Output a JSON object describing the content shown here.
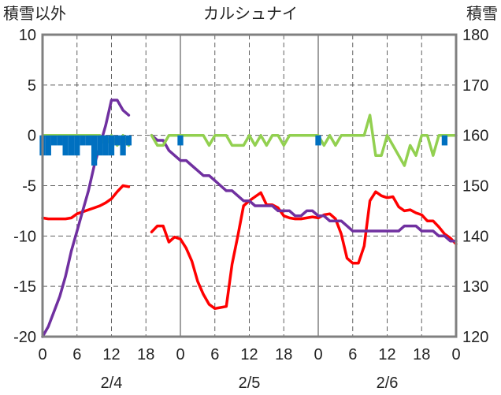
{
  "chart_data": {
    "type": "line",
    "title": "カルシュナイ",
    "left_axis_label": "積雪以外",
    "right_axis_label": "積雪",
    "left_ylim": [
      -20,
      10
    ],
    "right_ylim": [
      120,
      180
    ],
    "left_ticks": [
      "10",
      "5",
      "0",
      "-5",
      "-10",
      "-15",
      "-20"
    ],
    "right_ticks": [
      "180",
      "170",
      "160",
      "150",
      "140",
      "130",
      "120"
    ],
    "x_tick_labels": [
      "0",
      "6",
      "12",
      "18",
      "0",
      "6",
      "12",
      "18",
      "0",
      "6",
      "12",
      "18",
      "0"
    ],
    "x_hours_range": [
      0,
      72
    ],
    "date_labels": [
      {
        "label": "2/4",
        "hour": 12
      },
      {
        "label": "2/5",
        "hour": 36
      },
      {
        "label": "2/6",
        "hour": 60
      }
    ],
    "grid": true,
    "colors": {
      "temperature": "#ff0000",
      "snow_depth": "#7030a0",
      "snow_change": "#92d050",
      "precipitation": "#0070c0",
      "axes": "#808080",
      "grid": "#606060"
    },
    "series": [
      {
        "axis": "left",
        "color": "#ff0000",
        "style": "line",
        "points": [
          [
            0,
            -8.2
          ],
          [
            1,
            -8.3
          ],
          [
            2,
            -8.3
          ],
          [
            3,
            -8.3
          ],
          [
            4,
            -8.3
          ],
          [
            5,
            -8.2
          ],
          [
            6,
            -7.8
          ],
          [
            7,
            -7.6
          ],
          [
            8,
            -7.4
          ],
          [
            9,
            -7.2
          ],
          [
            10,
            -7.0
          ],
          [
            11,
            -6.7
          ],
          [
            12,
            -6.3
          ],
          [
            13,
            -5.6
          ],
          [
            14,
            -5.0
          ],
          [
            15,
            -5.1
          ],
          [
            19,
            -9.6
          ],
          [
            20,
            -9.0
          ],
          [
            21,
            -9.0
          ],
          [
            22,
            -10.6
          ],
          [
            23,
            -10.1
          ],
          [
            24,
            -10.3
          ],
          [
            25,
            -11.2
          ],
          [
            26,
            -12.5
          ],
          [
            27,
            -14.5
          ],
          [
            28,
            -15.8
          ],
          [
            29,
            -16.8
          ],
          [
            30,
            -17.2
          ],
          [
            31,
            -17.1
          ],
          [
            32,
            -17.0
          ],
          [
            33,
            -12.8
          ],
          [
            34,
            -10.0
          ],
          [
            35,
            -7.0
          ],
          [
            36,
            -6.5
          ],
          [
            37,
            -6.1
          ],
          [
            38,
            -5.7
          ],
          [
            39,
            -6.9
          ],
          [
            40,
            -6.9
          ],
          [
            41,
            -7.2
          ],
          [
            42,
            -8.0
          ],
          [
            43,
            -8.2
          ],
          [
            44,
            -8.3
          ],
          [
            45,
            -8.3
          ],
          [
            46,
            -8.2
          ],
          [
            47,
            -8.1
          ],
          [
            48,
            -8.2
          ],
          [
            49,
            -7.9
          ],
          [
            50,
            -7.8
          ],
          [
            51,
            -8.3
          ],
          [
            52,
            -9.8
          ],
          [
            53,
            -12.2
          ],
          [
            54,
            -12.7
          ],
          [
            55,
            -12.7
          ],
          [
            56,
            -11.0
          ],
          [
            57,
            -6.5
          ],
          [
            58,
            -5.6
          ],
          [
            59,
            -6.0
          ],
          [
            60,
            -6.2
          ],
          [
            61,
            -6.1
          ],
          [
            62,
            -7.1
          ],
          [
            63,
            -7.5
          ],
          [
            64,
            -7.4
          ],
          [
            65,
            -7.7
          ],
          [
            66,
            -7.9
          ],
          [
            67,
            -8.5
          ],
          [
            68,
            -8.5
          ],
          [
            69,
            -9.1
          ],
          [
            70,
            -9.8
          ],
          [
            71,
            -10.2
          ],
          [
            72,
            -10.8
          ]
        ]
      },
      {
        "axis": "right",
        "color": "#7030a0",
        "style": "line",
        "points": [
          [
            0,
            120
          ],
          [
            1,
            122
          ],
          [
            2,
            125
          ],
          [
            3,
            128
          ],
          [
            4,
            132
          ],
          [
            5,
            137
          ],
          [
            6,
            141
          ],
          [
            7,
            145
          ],
          [
            8,
            149
          ],
          [
            9,
            154
          ],
          [
            10,
            158
          ],
          [
            11,
            162
          ],
          [
            12,
            167
          ],
          [
            13,
            167
          ],
          [
            14,
            165
          ],
          [
            15,
            164
          ],
          [
            19,
            160
          ],
          [
            20,
            159
          ],
          [
            21,
            159
          ],
          [
            22,
            157
          ],
          [
            23,
            156
          ],
          [
            24,
            155
          ],
          [
            25,
            155
          ],
          [
            26,
            154
          ],
          [
            27,
            153
          ],
          [
            28,
            152
          ],
          [
            29,
            152
          ],
          [
            30,
            151
          ],
          [
            31,
            150
          ],
          [
            32,
            149
          ],
          [
            33,
            149
          ],
          [
            34,
            148
          ],
          [
            35,
            147
          ],
          [
            36,
            147
          ],
          [
            37,
            146
          ],
          [
            38,
            146
          ],
          [
            39,
            146
          ],
          [
            40,
            146
          ],
          [
            41,
            145
          ],
          [
            42,
            145
          ],
          [
            43,
            145
          ],
          [
            44,
            144
          ],
          [
            45,
            144
          ],
          [
            46,
            145
          ],
          [
            47,
            145
          ],
          [
            48,
            144
          ],
          [
            49,
            144
          ],
          [
            50,
            143
          ],
          [
            51,
            143
          ],
          [
            52,
            143
          ],
          [
            53,
            142
          ],
          [
            54,
            141
          ],
          [
            55,
            141
          ],
          [
            56,
            141
          ],
          [
            57,
            141
          ],
          [
            58,
            141
          ],
          [
            59,
            141
          ],
          [
            60,
            141
          ],
          [
            61,
            141
          ],
          [
            62,
            141
          ],
          [
            63,
            142
          ],
          [
            64,
            142
          ],
          [
            65,
            142
          ],
          [
            66,
            141
          ],
          [
            67,
            141
          ],
          [
            68,
            141
          ],
          [
            69,
            140
          ],
          [
            70,
            140
          ],
          [
            71,
            139
          ],
          [
            72,
            139
          ]
        ]
      },
      {
        "axis": "left",
        "color": "#92d050",
        "style": "line",
        "points": [
          [
            0,
            0
          ],
          [
            1,
            0
          ],
          [
            2,
            0
          ],
          [
            3,
            0
          ],
          [
            4,
            0
          ],
          [
            5,
            0
          ],
          [
            6,
            0
          ],
          [
            7,
            0
          ],
          [
            8,
            0
          ],
          [
            9,
            0
          ],
          [
            10,
            0
          ],
          [
            11,
            -1
          ],
          [
            12,
            0
          ],
          [
            13,
            -1
          ],
          [
            14,
            0
          ],
          [
            15,
            -1
          ],
          [
            19,
            0
          ],
          [
            20,
            -1
          ],
          [
            21,
            -1
          ],
          [
            22,
            0
          ],
          [
            23,
            0
          ],
          [
            24,
            0
          ],
          [
            25,
            0
          ],
          [
            26,
            0
          ],
          [
            27,
            0
          ],
          [
            28,
            0
          ],
          [
            29,
            -1
          ],
          [
            30,
            0
          ],
          [
            31,
            0
          ],
          [
            32,
            0
          ],
          [
            33,
            -1
          ],
          [
            34,
            -1
          ],
          [
            35,
            -1
          ],
          [
            36,
            0
          ],
          [
            37,
            -1
          ],
          [
            38,
            0
          ],
          [
            39,
            -1
          ],
          [
            40,
            0
          ],
          [
            41,
            0
          ],
          [
            42,
            -1
          ],
          [
            43,
            0
          ],
          [
            44,
            0
          ],
          [
            45,
            0
          ],
          [
            46,
            0
          ],
          [
            47,
            0
          ],
          [
            48,
            0
          ],
          [
            49,
            -1
          ],
          [
            50,
            0
          ],
          [
            51,
            -1
          ],
          [
            52,
            0
          ],
          [
            53,
            0
          ],
          [
            54,
            0
          ],
          [
            55,
            0
          ],
          [
            56,
            0
          ],
          [
            57,
            2
          ],
          [
            58,
            -2
          ],
          [
            59,
            -2
          ],
          [
            60,
            0
          ],
          [
            61,
            -1
          ],
          [
            62,
            -2
          ],
          [
            63,
            -3
          ],
          [
            64,
            -1
          ],
          [
            65,
            -2
          ],
          [
            66,
            0
          ],
          [
            67,
            0
          ],
          [
            68,
            -2
          ],
          [
            69,
            0
          ],
          [
            70,
            0
          ],
          [
            71,
            0
          ],
          [
            72,
            0
          ]
        ]
      },
      {
        "axis": "left",
        "color": "#0070c0",
        "style": "bar",
        "points": [
          [
            0,
            -2
          ],
          [
            1,
            -2
          ],
          [
            2,
            -1
          ],
          [
            3,
            -1
          ],
          [
            4,
            -2
          ],
          [
            5,
            -2
          ],
          [
            6,
            -2
          ],
          [
            7,
            -1
          ],
          [
            8,
            -1
          ],
          [
            9,
            -3
          ],
          [
            10,
            -2
          ],
          [
            11,
            -2
          ],
          [
            12,
            -2
          ],
          [
            13,
            -1
          ],
          [
            14,
            -2
          ],
          [
            15,
            -1
          ],
          [
            24,
            -1
          ],
          [
            48,
            -1
          ],
          [
            70,
            -1
          ]
        ]
      }
    ]
  }
}
